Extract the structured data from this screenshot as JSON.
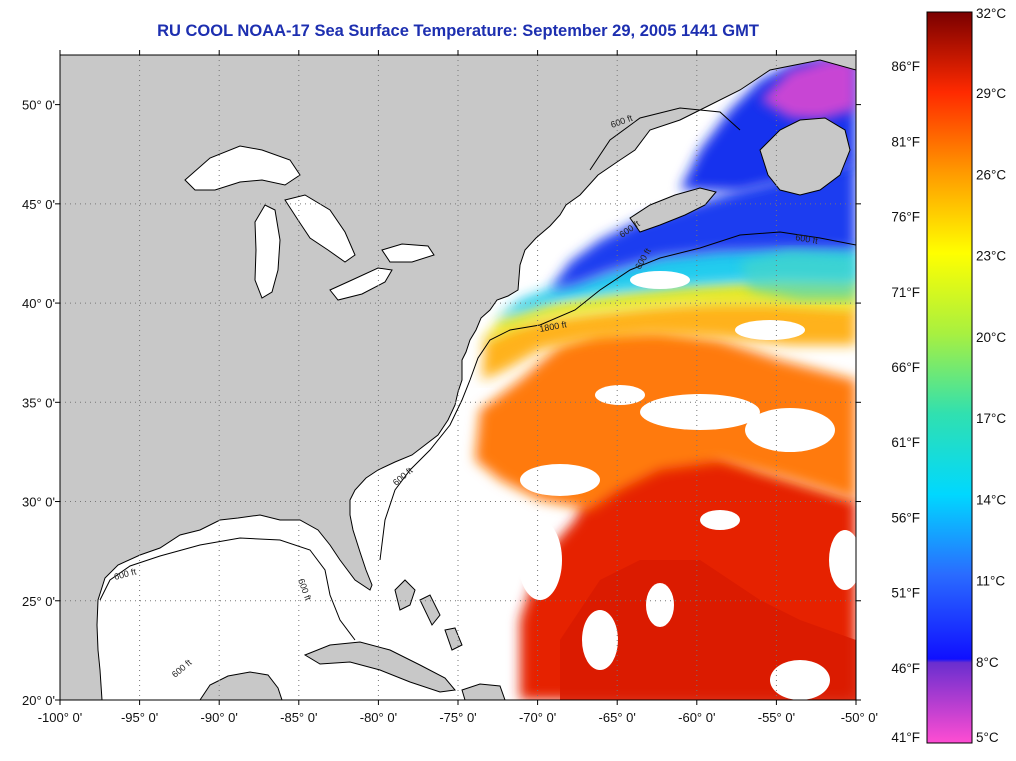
{
  "title": "RU COOL  NOAA-17  Sea Surface Temperature:  September 29, 2005 1441 GMT",
  "map": {
    "lon_range": [
      -100,
      -50
    ],
    "lat_range": [
      20,
      52.5
    ],
    "lat_labels": [
      {
        "lat": 50,
        "label": "50° 0'"
      },
      {
        "lat": 45,
        "label": "45° 0'"
      },
      {
        "lat": 40,
        "label": "40° 0'"
      },
      {
        "lat": 35,
        "label": "35° 0'"
      },
      {
        "lat": 30,
        "label": "30° 0'"
      },
      {
        "lat": 25,
        "label": "25° 0'"
      },
      {
        "lat": 20,
        "label": "20° 0'"
      }
    ],
    "lon_labels": [
      {
        "lon": -100,
        "label": "-100° 0'"
      },
      {
        "lon": -95,
        "label": "-95° 0'"
      },
      {
        "lon": -90,
        "label": "-90° 0'"
      },
      {
        "lon": -85,
        "label": "-85° 0'"
      },
      {
        "lon": -80,
        "label": "-80° 0'"
      },
      {
        "lon": -75,
        "label": "-75° 0'"
      },
      {
        "lon": -70,
        "label": "-70° 0'"
      },
      {
        "lon": -65,
        "label": "-65° 0'"
      },
      {
        "lon": -60,
        "label": "-60° 0'"
      },
      {
        "lon": -55,
        "label": "-55° 0'"
      },
      {
        "lon": -50,
        "label": "-50° 0'"
      }
    ],
    "contour_labels": [
      "600 ft",
      "600 ft",
      "600 ft",
      "600 ft",
      "1800 ft",
      "600 ft",
      "600 ft",
      "600 ft",
      "600 ft"
    ],
    "colors": {
      "land": "#c8c8c8",
      "ocean_cloud": "#ffffff",
      "coast": "#000000"
    }
  },
  "colorbar": {
    "range_c": [
      5,
      32
    ],
    "celsius_labels": [
      "32°C",
      "29°C",
      "26°C",
      "23°C",
      "20°C",
      "17°C",
      "14°C",
      "11°C",
      "8°C",
      "5°C"
    ],
    "fahrenheit_labels": [
      "86°F",
      "81°F",
      "76°F",
      "71°F",
      "66°F",
      "61°F",
      "56°F",
      "51°F",
      "46°F",
      "41°F"
    ],
    "stops": [
      {
        "c": 5,
        "color": "#ff4dd2"
      },
      {
        "c": 8,
        "color": "#6a2ecf"
      },
      {
        "c": 8.1,
        "color": "#1010ff"
      },
      {
        "c": 11,
        "color": "#2a6bff"
      },
      {
        "c": 14,
        "color": "#00d8ff"
      },
      {
        "c": 17,
        "color": "#30e0b0"
      },
      {
        "c": 20,
        "color": "#a8f040"
      },
      {
        "c": 23,
        "color": "#ffff00"
      },
      {
        "c": 26,
        "color": "#ff9a00"
      },
      {
        "c": 29,
        "color": "#ff2a00"
      },
      {
        "c": 32,
        "color": "#7a0000"
      }
    ]
  }
}
